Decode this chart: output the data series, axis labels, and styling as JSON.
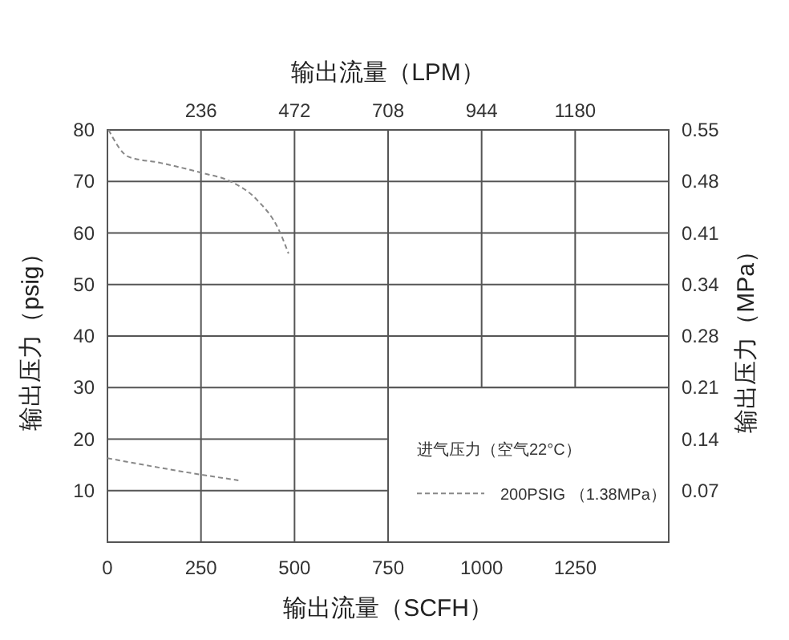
{
  "chart_data": {
    "type": "line",
    "xlabel": "输出流量（SCFH）",
    "x2label": "输出流量（LPM）",
    "ylabel": "输出压力（psig）",
    "y2label": "输出压力（MPa）",
    "legend_title": "进气压力（空气22°C）",
    "series": [
      {
        "name": "200PSIG （1.38MPa）",
        "color": "#888888",
        "x": [
          3,
          56,
          142,
          250,
          329,
          400,
          458,
          484
        ],
        "values": [
          80,
          74.8,
          73.6,
          71.7,
          70,
          66.4,
          60.6,
          56
        ]
      },
      {
        "color": "#888888",
        "x": [
          0,
          250,
          350
        ],
        "values": [
          16.3,
          13.1,
          12
        ]
      }
    ],
    "xlim": [
      0,
      1500
    ],
    "xticks": [
      0,
      250,
      500,
      750,
      1000,
      1250
    ],
    "x2lim": [
      0,
      1416
    ],
    "x2ticks": [
      236,
      472,
      708,
      944,
      1180
    ],
    "ylim": [
      0,
      80
    ],
    "yticks": [
      10,
      20,
      30,
      40,
      50,
      60,
      70,
      80
    ],
    "y2lim": [
      0,
      0.5516
    ],
    "y2ticks": [
      {
        "value": 0.0689,
        "label": "0.07"
      },
      {
        "value": 0.1379,
        "label": "0.14"
      },
      {
        "value": 0.2068,
        "label": "0.21"
      },
      {
        "value": 0.2758,
        "label": "0.28"
      },
      {
        "value": 0.3447,
        "label": "0.34"
      },
      {
        "value": 0.4137,
        "label": "0.41"
      },
      {
        "value": 0.4826,
        "label": "0.48"
      },
      {
        "value": 0.5516,
        "label": "0.55"
      }
    ],
    "grid": true,
    "legend": "bottom right",
    "line_style": "dashed",
    "marker": "none"
  }
}
